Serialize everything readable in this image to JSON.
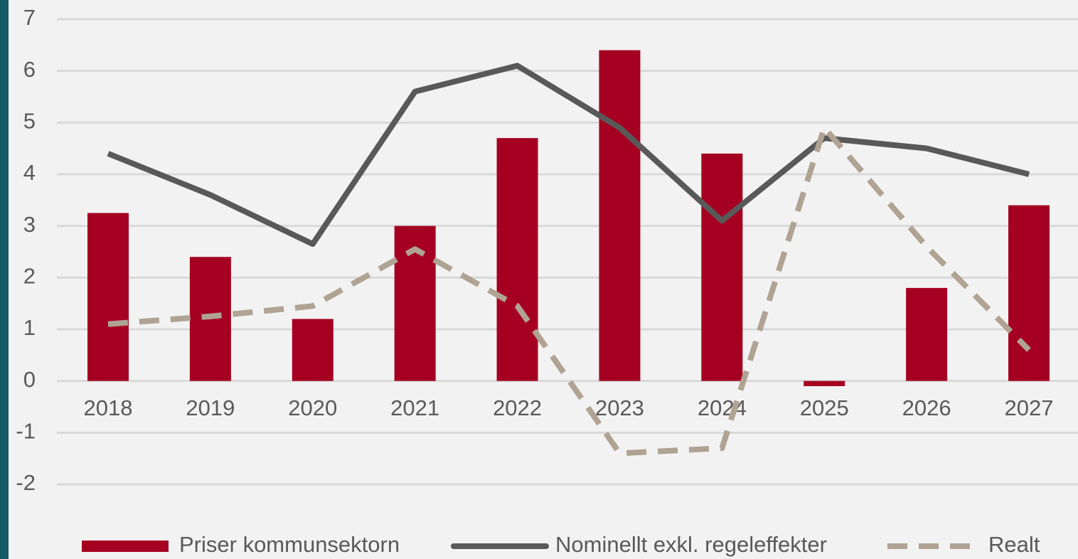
{
  "chart_data": {
    "type": "bar",
    "categories": [
      "2018",
      "2019",
      "2020",
      "2021",
      "2022",
      "2023",
      "2024",
      "2025",
      "2026",
      "2027"
    ],
    "series": [
      {
        "name": "Priser kommunsektorn",
        "type": "bar",
        "color": "#a50021",
        "values": [
          3.25,
          2.4,
          1.2,
          3.0,
          4.7,
          6.4,
          4.4,
          -0.1,
          1.8,
          3.4
        ]
      },
      {
        "name": "Nominellt exkl. regeleffekter",
        "type": "line",
        "color": "#595959",
        "values": [
          4.4,
          3.6,
          2.65,
          5.6,
          6.1,
          4.9,
          3.1,
          4.7,
          4.5,
          4.0
        ]
      },
      {
        "name": "Realt",
        "type": "line",
        "dashed": true,
        "color": "#b0a394",
        "values": [
          1.1,
          1.25,
          1.45,
          2.55,
          1.45,
          -1.4,
          -1.3,
          4.9,
          2.6,
          0.6
        ]
      }
    ],
    "ylim": [
      -2,
      7
    ],
    "yticks": [
      -2,
      -1,
      0,
      1,
      2,
      3,
      4,
      5,
      6,
      7
    ],
    "grid": true,
    "legend": "bottom"
  }
}
